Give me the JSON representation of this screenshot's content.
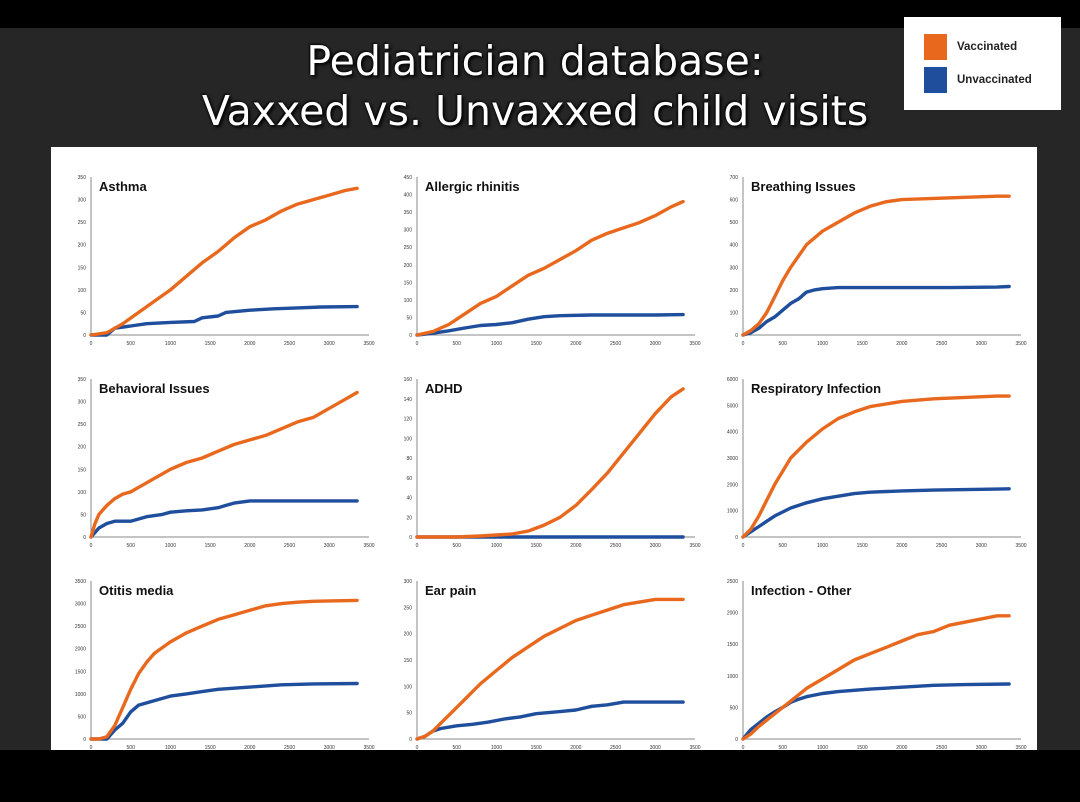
{
  "slide": {
    "title_line1": "Pediatrician database:",
    "title_line2": "Vaxxed vs. Unvaxxed child visits"
  },
  "legend": {
    "items": [
      {
        "label": "Vaccinated",
        "color": "#E8691E"
      },
      {
        "label": "Unvaccinated",
        "color": "#1F4E9C"
      }
    ]
  },
  "colors": {
    "vaccinated": "#E8691E",
    "unvaccinated": "#1F4E9C"
  },
  "chart_data": [
    {
      "type": "line",
      "title": "Asthma",
      "xlim": [
        0,
        3500
      ],
      "xticks": [
        0,
        500,
        1000,
        1500,
        2000,
        2500,
        3000,
        3500
      ],
      "ylim": [
        0,
        350
      ],
      "yticks": [
        0,
        50,
        100,
        150,
        200,
        250,
        300,
        350
      ],
      "series": [
        {
          "name": "Vaccinated",
          "x": [
            0,
            200,
            400,
            600,
            800,
            1000,
            1200,
            1400,
            1600,
            1800,
            2000,
            2200,
            2400,
            2600,
            2800,
            3000,
            3200,
            3350
          ],
          "y": [
            0,
            5,
            25,
            50,
            75,
            100,
            130,
            160,
            185,
            215,
            240,
            255,
            275,
            290,
            300,
            310,
            320,
            325
          ]
        },
        {
          "name": "Unvaccinated",
          "x": [
            0,
            200,
            300,
            500,
            700,
            1000,
            1300,
            1400,
            1600,
            1700,
            2000,
            2300,
            2600,
            2900,
            3350
          ],
          "y": [
            0,
            0,
            15,
            20,
            25,
            28,
            30,
            38,
            42,
            50,
            55,
            58,
            60,
            62,
            63
          ]
        }
      ]
    },
    {
      "type": "line",
      "title": "Allergic rhinitis",
      "xlim": [
        0,
        3500
      ],
      "xticks": [
        0,
        500,
        1000,
        1500,
        2000,
        2500,
        3000,
        3500
      ],
      "ylim": [
        0,
        450
      ],
      "yticks": [
        0,
        50,
        100,
        150,
        200,
        250,
        300,
        350,
        400,
        450
      ],
      "series": [
        {
          "name": "Vaccinated",
          "x": [
            0,
            200,
            400,
            600,
            800,
            1000,
            1200,
            1400,
            1600,
            1800,
            2000,
            2200,
            2400,
            2600,
            2800,
            3000,
            3200,
            3350
          ],
          "y": [
            0,
            10,
            30,
            60,
            90,
            110,
            140,
            170,
            190,
            215,
            240,
            270,
            290,
            305,
            320,
            340,
            365,
            380
          ]
        },
        {
          "name": "Unvaccinated",
          "x": [
            0,
            200,
            400,
            600,
            800,
            1000,
            1200,
            1400,
            1600,
            1800,
            2200,
            2600,
            3000,
            3350
          ],
          "y": [
            0,
            5,
            12,
            20,
            27,
            30,
            35,
            45,
            52,
            55,
            57,
            57,
            57,
            58
          ]
        }
      ]
    },
    {
      "type": "line",
      "title": "Breathing Issues",
      "xlim": [
        0,
        3500
      ],
      "xticks": [
        0,
        500,
        1000,
        1500,
        2000,
        2500,
        3000,
        3500
      ],
      "ylim": [
        0,
        700
      ],
      "yticks": [
        0,
        100,
        200,
        300,
        400,
        500,
        600,
        700
      ],
      "series": [
        {
          "name": "Vaccinated",
          "x": [
            0,
            100,
            200,
            300,
            400,
            500,
            600,
            700,
            800,
            1000,
            1200,
            1400,
            1600,
            1800,
            2000,
            2400,
            2800,
            3200,
            3350
          ],
          "y": [
            0,
            20,
            50,
            100,
            170,
            240,
            300,
            350,
            400,
            460,
            500,
            540,
            570,
            590,
            600,
            605,
            610,
            615,
            615
          ]
        },
        {
          "name": "Unvaccinated",
          "x": [
            0,
            100,
            200,
            300,
            400,
            500,
            600,
            700,
            800,
            900,
            1000,
            1200,
            1400,
            2000,
            2600,
            3200,
            3350
          ],
          "y": [
            0,
            10,
            30,
            60,
            80,
            110,
            140,
            160,
            190,
            200,
            205,
            210,
            210,
            210,
            210,
            212,
            215
          ]
        }
      ]
    },
    {
      "type": "line",
      "title": "Behavioral Issues",
      "xlim": [
        0,
        3500
      ],
      "xticks": [
        0,
        500,
        1000,
        1500,
        2000,
        2500,
        3000,
        3500
      ],
      "ylim": [
        0,
        350
      ],
      "yticks": [
        0,
        50,
        100,
        150,
        200,
        250,
        300,
        350
      ],
      "series": [
        {
          "name": "Vaccinated",
          "x": [
            0,
            50,
            100,
            200,
            300,
            400,
            500,
            600,
            800,
            1000,
            1200,
            1400,
            1600,
            1800,
            2000,
            2200,
            2400,
            2600,
            2800,
            3000,
            3200,
            3350
          ],
          "y": [
            0,
            30,
            50,
            70,
            85,
            95,
            100,
            110,
            130,
            150,
            165,
            175,
            190,
            205,
            215,
            225,
            240,
            255,
            265,
            285,
            305,
            320
          ]
        },
        {
          "name": "Unvaccinated",
          "x": [
            0,
            50,
            100,
            200,
            300,
            500,
            700,
            900,
            1000,
            1200,
            1400,
            1600,
            1700,
            1800,
            2000,
            2400,
            2800,
            3350
          ],
          "y": [
            0,
            10,
            20,
            30,
            35,
            35,
            45,
            50,
            55,
            58,
            60,
            65,
            70,
            75,
            80,
            80,
            80,
            80
          ]
        }
      ]
    },
    {
      "type": "line",
      "title": "ADHD",
      "xlim": [
        0,
        3500
      ],
      "xticks": [
        0,
        500,
        1000,
        1500,
        2000,
        2500,
        3000,
        3500
      ],
      "ylim": [
        0,
        160
      ],
      "yticks": [
        0,
        20,
        40,
        60,
        80,
        100,
        120,
        140,
        160
      ],
      "series": [
        {
          "name": "Vaccinated",
          "x": [
            0,
            500,
            800,
            1000,
            1200,
            1400,
            1600,
            1800,
            2000,
            2200,
            2400,
            2600,
            2800,
            3000,
            3200,
            3350
          ],
          "y": [
            0,
            0,
            1,
            2,
            3,
            6,
            12,
            20,
            32,
            48,
            65,
            85,
            105,
            125,
            142,
            150
          ]
        },
        {
          "name": "Unvaccinated",
          "x": [
            0,
            1000,
            2000,
            3000,
            3350
          ],
          "y": [
            0,
            0,
            0,
            0,
            0
          ]
        }
      ]
    },
    {
      "type": "line",
      "title": "Respiratory Infection",
      "xlim": [
        0,
        3500
      ],
      "xticks": [
        0,
        500,
        1000,
        1500,
        2000,
        2500,
        3000,
        3500
      ],
      "ylim": [
        0,
        6000
      ],
      "yticks": [
        0,
        1000,
        2000,
        3000,
        4000,
        5000,
        6000
      ],
      "series": [
        {
          "name": "Vaccinated",
          "x": [
            0,
            100,
            200,
            300,
            400,
            500,
            600,
            800,
            1000,
            1200,
            1400,
            1600,
            1800,
            2000,
            2400,
            2800,
            3200,
            3350
          ],
          "y": [
            0,
            300,
            800,
            1400,
            2000,
            2500,
            3000,
            3600,
            4100,
            4500,
            4750,
            4950,
            5050,
            5150,
            5250,
            5300,
            5350,
            5350
          ]
        },
        {
          "name": "Unvaccinated",
          "x": [
            0,
            100,
            200,
            300,
            400,
            500,
            600,
            800,
            1000,
            1200,
            1400,
            1600,
            2000,
            2400,
            2800,
            3200,
            3350
          ],
          "y": [
            0,
            200,
            400,
            600,
            800,
            950,
            1100,
            1300,
            1450,
            1550,
            1650,
            1700,
            1750,
            1780,
            1800,
            1820,
            1830
          ]
        }
      ]
    },
    {
      "type": "line",
      "title": "Otitis media",
      "xlim": [
        0,
        3500
      ],
      "xticks": [
        0,
        500,
        1000,
        1500,
        2000,
        2500,
        3000,
        3500
      ],
      "ylim": [
        0,
        3500
      ],
      "yticks": [
        0,
        500,
        1000,
        1500,
        2000,
        2500,
        3000,
        3500
      ],
      "series": [
        {
          "name": "Vaccinated",
          "x": [
            0,
            100,
            200,
            300,
            400,
            500,
            600,
            700,
            800,
            1000,
            1200,
            1400,
            1600,
            1800,
            2000,
            2200,
            2400,
            2600,
            2800,
            3000,
            3350
          ],
          "y": [
            0,
            0,
            50,
            300,
            700,
            1100,
            1450,
            1700,
            1900,
            2150,
            2350,
            2500,
            2650,
            2750,
            2850,
            2950,
            3000,
            3030,
            3050,
            3060,
            3070
          ]
        },
        {
          "name": "Unvaccinated",
          "x": [
            0,
            200,
            300,
            400,
            500,
            600,
            700,
            800,
            1000,
            1200,
            1400,
            1600,
            2000,
            2400,
            2800,
            3350
          ],
          "y": [
            0,
            0,
            200,
            350,
            600,
            750,
            800,
            850,
            950,
            1000,
            1050,
            1100,
            1150,
            1200,
            1220,
            1230
          ]
        }
      ]
    },
    {
      "type": "line",
      "title": "Ear pain",
      "xlim": [
        0,
        3500
      ],
      "xticks": [
        0,
        500,
        1000,
        1500,
        2000,
        2500,
        3000,
        3500
      ],
      "ylim": [
        0,
        300
      ],
      "yticks": [
        0,
        50,
        100,
        150,
        200,
        250,
        300
      ],
      "series": [
        {
          "name": "Vaccinated",
          "x": [
            0,
            100,
            200,
            300,
            400,
            500,
            600,
            700,
            800,
            1000,
            1200,
            1400,
            1600,
            1800,
            2000,
            2200,
            2400,
            2600,
            2800,
            3000,
            3200,
            3350
          ],
          "y": [
            0,
            5,
            15,
            30,
            45,
            60,
            75,
            90,
            105,
            130,
            155,
            175,
            195,
            210,
            225,
            235,
            245,
            255,
            260,
            265,
            265,
            265
          ]
        },
        {
          "name": "Unvaccinated",
          "x": [
            0,
            100,
            200,
            300,
            500,
            700,
            900,
            1100,
            1300,
            1500,
            1800,
            2000,
            2200,
            2400,
            2600,
            3000,
            3350
          ],
          "y": [
            0,
            5,
            15,
            20,
            25,
            28,
            32,
            38,
            42,
            48,
            52,
            55,
            62,
            65,
            70,
            70,
            70
          ]
        }
      ]
    },
    {
      "type": "line",
      "title": "Infection - Other",
      "xlim": [
        0,
        3500
      ],
      "xticks": [
        0,
        500,
        1000,
        1500,
        2000,
        2500,
        3000,
        3500
      ],
      "ylim": [
        0,
        2500
      ],
      "yticks": [
        0,
        500,
        1000,
        1500,
        2000,
        2500
      ],
      "series": [
        {
          "name": "Vaccinated",
          "x": [
            0,
            100,
            200,
            300,
            400,
            500,
            600,
            700,
            800,
            1000,
            1200,
            1400,
            1600,
            1800,
            2000,
            2200,
            2400,
            2600,
            2800,
            3000,
            3200,
            3350
          ],
          "y": [
            0,
            80,
            200,
            300,
            400,
            500,
            600,
            700,
            800,
            950,
            1100,
            1250,
            1350,
            1450,
            1550,
            1650,
            1700,
            1800,
            1850,
            1900,
            1950,
            1950
          ]
        },
        {
          "name": "Unvaccinated",
          "x": [
            0,
            100,
            200,
            300,
            400,
            500,
            600,
            700,
            800,
            1000,
            1200,
            1400,
            1600,
            2000,
            2400,
            2800,
            3350
          ],
          "y": [
            0,
            150,
            250,
            350,
            430,
            500,
            580,
            630,
            670,
            720,
            750,
            770,
            790,
            820,
            850,
            860,
            870
          ]
        }
      ]
    }
  ]
}
